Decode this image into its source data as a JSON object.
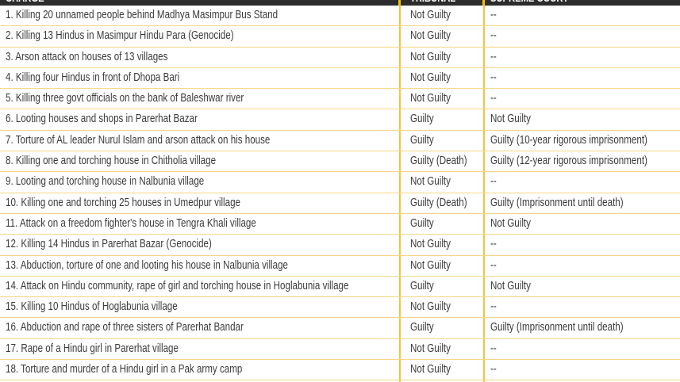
{
  "header": {
    "charge": "CHARGE",
    "tribunal": "TRIBUNAL",
    "supreme_court": "SUPREME COURT"
  },
  "colors": {
    "header_bg": "#2c2c2c",
    "accent": "#f5c242",
    "row_line": "#f8d784"
  },
  "rows": [
    {
      "charge": "1. Killing 20 unnamed people behind Madhya Masimpur Bus Stand",
      "tribunal": "Not Guilty",
      "supreme_court": "--"
    },
    {
      "charge": "2. Killing 13 Hindus in Masimpur Hindu Para (Genocide)",
      "tribunal": "Not Guilty",
      "supreme_court": "--"
    },
    {
      "charge": "3. Arson attack on houses of 13 villages",
      "tribunal": "Not Guilty",
      "supreme_court": "--"
    },
    {
      "charge": "4. Killing four Hindus in front of Dhopa Bari",
      "tribunal": "Not Guilty",
      "supreme_court": "--"
    },
    {
      "charge": "5. Killing three govt officials on the bank of Baleshwar river",
      "tribunal": "Not Guilty",
      "supreme_court": "--"
    },
    {
      "charge": "6. Looting houses and shops in Parerhat Bazar",
      "tribunal": "Guilty",
      "supreme_court": "Not Guilty"
    },
    {
      "charge": "7. Torture of AL leader Nurul Islam  and arson attack on his house",
      "tribunal": "Guilty",
      "supreme_court": "Guilty (10-year rigorous imprisonment)"
    },
    {
      "charge": "8. Killing one and torching house in Chitholia village",
      "tribunal": "Guilty (Death)",
      "supreme_court": "Guilty (12-year rigorous imprisonment)"
    },
    {
      "charge": "9. Looting and torching house in Nalbunia village",
      "tribunal": "Not Guilty",
      "supreme_court": "--"
    },
    {
      "charge": "10. Killing one and torching 25 houses in Umedpur village",
      "tribunal": "Guilty (Death)",
      "supreme_court": "Guilty (Imprisonment until death)"
    },
    {
      "charge": "11. Attack on a freedom fighter's house in Tengra Khali village",
      "tribunal": "Guilty",
      "supreme_court": "Not Guilty"
    },
    {
      "charge": "12. Killing 14 Hindus in  Parerhat Bazar (Genocide)",
      "tribunal": "Not Guilty",
      "supreme_court": "--"
    },
    {
      "charge": "13. Abduction, torture  of one and looting his house in Nalbunia village",
      "tribunal": "Not Guilty",
      "supreme_court": "--"
    },
    {
      "charge": "14. Attack on Hindu community, rape of girl and torching house in Hoglabunia village",
      "tribunal": "Guilty",
      "supreme_court": "Not Guilty"
    },
    {
      "charge": "15. Killing 10 Hindus of Hoglabunia village",
      "tribunal": "Not Guilty",
      "supreme_court": "--"
    },
    {
      "charge": "16. Abduction and rape of three sisters of Parerhat Bandar",
      "tribunal": "Guilty",
      "supreme_court": "Guilty (Imprisonment until death)"
    },
    {
      "charge": "17. Rape of a Hindu girl in Parerhat village",
      "tribunal": "Not Guilty",
      "supreme_court": "--"
    },
    {
      "charge": "18. Torture and murder of a Hindu girl in a Pak army camp",
      "tribunal": "Not Guilty",
      "supreme_court": "--"
    }
  ]
}
